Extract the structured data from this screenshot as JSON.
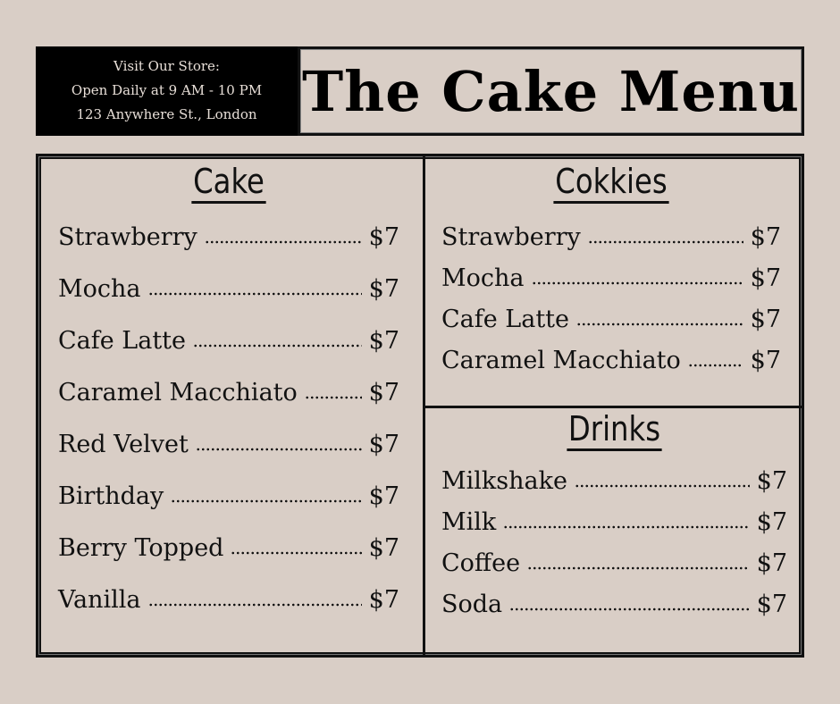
{
  "store": {
    "line1": "Visit Our Store:",
    "line2": "Open Daily at 9 AM - 10 PM",
    "line3": "123 Anywhere St., London"
  },
  "title": "The Cake Menu",
  "colors": {
    "background": "#d9cec6",
    "ink": "#111111",
    "store_box": "#000000"
  },
  "cake": {
    "heading": "Cake",
    "items": [
      {
        "name": "Strawberry",
        "price": "$7"
      },
      {
        "name": "Mocha",
        "price": "$7"
      },
      {
        "name": "Cafe Latte",
        "price": "$7"
      },
      {
        "name": "Caramel Macchiato",
        "price": "$7"
      },
      {
        "name": "Red Velvet",
        "price": "$7"
      },
      {
        "name": "Birthday",
        "price": "$7"
      },
      {
        "name": "Berry Topped",
        "price": "$7"
      },
      {
        "name": "Vanilla",
        "price": "$7"
      }
    ]
  },
  "cookies": {
    "heading": "Cokkies",
    "items": [
      {
        "name": "Strawberry",
        "price": "$7"
      },
      {
        "name": "Mocha",
        "price": "$7"
      },
      {
        "name": "Cafe Latte",
        "price": "$7"
      },
      {
        "name": "Caramel Macchiato",
        "price": "$7"
      }
    ]
  },
  "drinks": {
    "heading": "Drinks",
    "items": [
      {
        "name": "Milkshake",
        "price": "$7"
      },
      {
        "name": "Milk",
        "price": "$7"
      },
      {
        "name": "Coffee",
        "price": "$7"
      },
      {
        "name": "Soda",
        "price": "$7"
      }
    ]
  }
}
